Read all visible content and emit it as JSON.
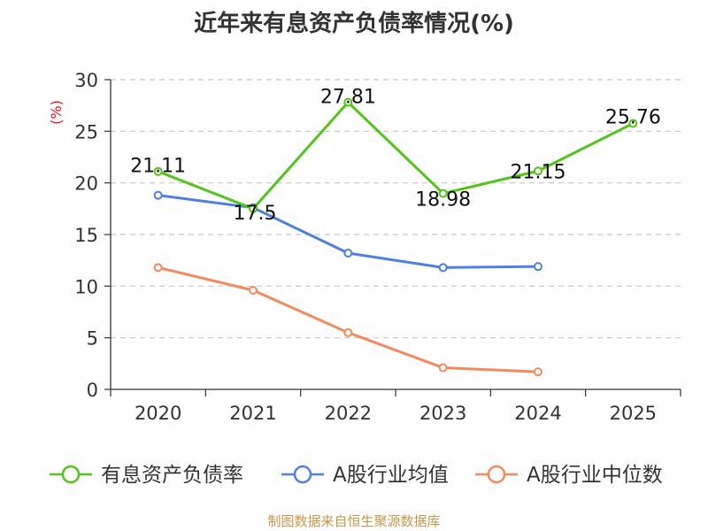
{
  "chart_data": {
    "type": "line",
    "title": "近年来有息资产负债率情况(%)",
    "ylabel": "(%)",
    "xlabel": "",
    "categories": [
      "2020",
      "2021",
      "2022",
      "2023",
      "2024",
      "2025"
    ],
    "y_ticks": [
      0,
      5,
      10,
      15,
      20,
      25,
      30
    ],
    "ylim": [
      0,
      30
    ],
    "grid": true,
    "legend_position": "bottom",
    "series": [
      {
        "name": "有息资产负债率",
        "color": "#52c41a",
        "values": [
          21.11,
          17.5,
          27.81,
          18.98,
          21.15,
          25.76
        ],
        "labels": [
          "21.11",
          "17.5",
          "27.81",
          "18.98",
          "21.15",
          "25.76"
        ]
      },
      {
        "name": "A股行业均值",
        "color": "#4f7fe0",
        "values": [
          18.8,
          17.6,
          13.2,
          11.8,
          11.9,
          null
        ]
      },
      {
        "name": "A股行业中位数",
        "color": "#f48a5c",
        "values": [
          11.8,
          9.6,
          5.5,
          2.1,
          1.7,
          null
        ]
      }
    ]
  },
  "footer": "制图数据来自恒生聚源数据库"
}
